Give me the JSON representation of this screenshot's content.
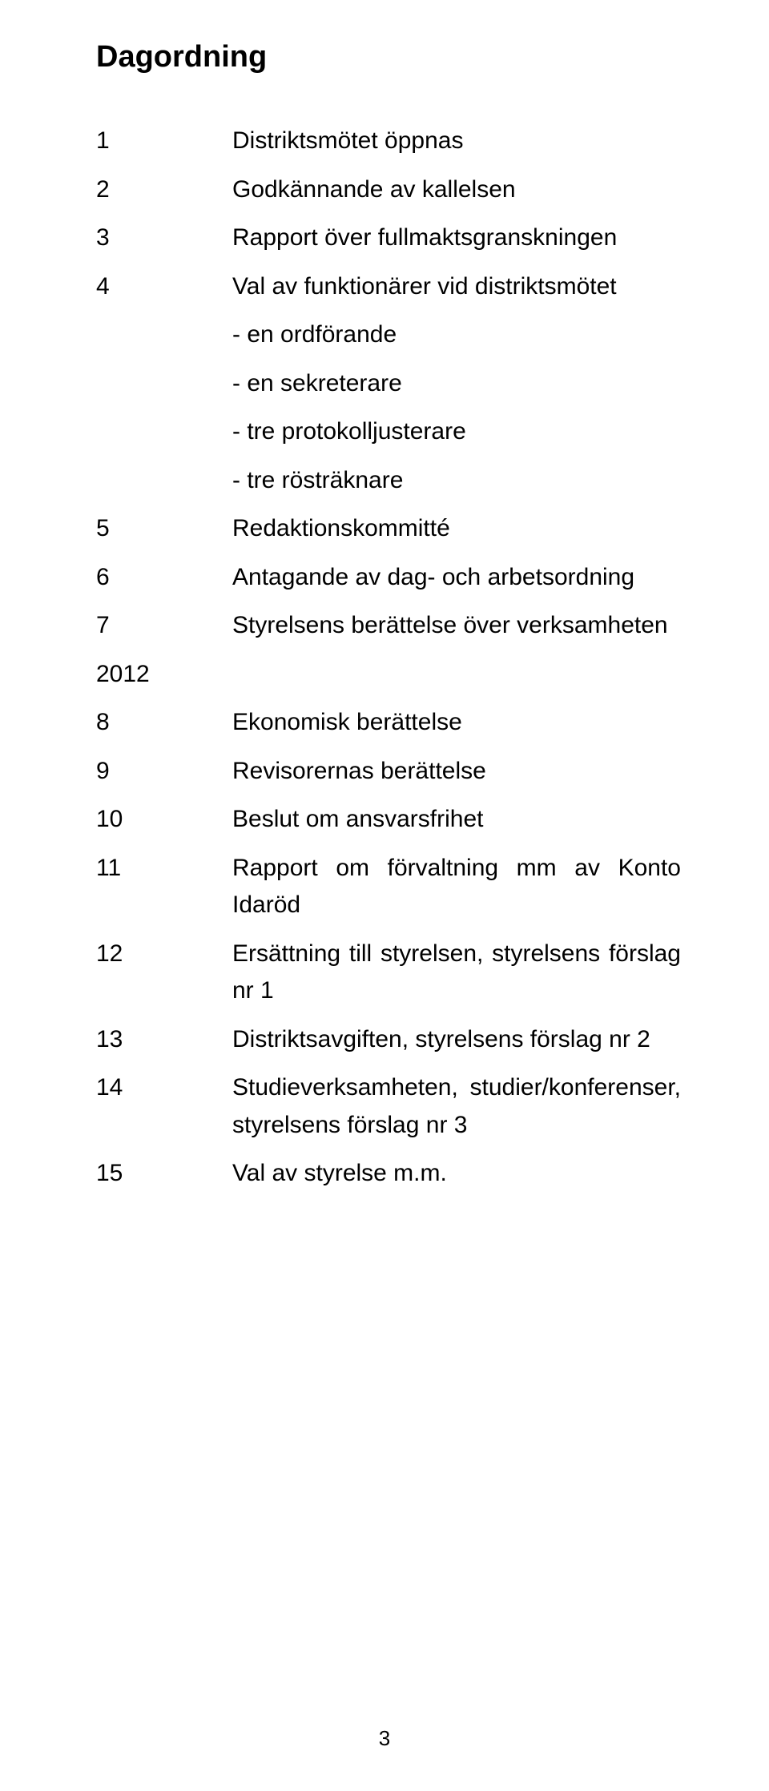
{
  "title": "Dagordning",
  "items": [
    {
      "num": "1",
      "text": "Distriktsmötet öppnas"
    },
    {
      "num": "2",
      "text": "Godkännande av kallelsen"
    },
    {
      "num": "3",
      "text": "Rapport över fullmaktsgranskningen"
    },
    {
      "num": "4",
      "text": "Val av funktionärer vid distriktsmötet"
    }
  ],
  "subs": [
    "- en ordförande",
    "- en sekreterare",
    "- tre protokolljusterare",
    "- tre rösträknare"
  ],
  "items2": [
    {
      "num": "5",
      "text": "Redaktionskommitté"
    },
    {
      "num": "6",
      "text": "Antagande av dag- och arbetsordning"
    },
    {
      "num": "7",
      "text": "Styrelsens berättelse över verksamheten"
    }
  ],
  "year": "2012",
  "items3": [
    {
      "num": "8",
      "text": "Ekonomisk berättelse"
    },
    {
      "num": "9",
      "text": "Revisorernas berättelse"
    },
    {
      "num": "10",
      "text": "Beslut om ansvarsfrihet"
    },
    {
      "num": "11",
      "text": "Rapport om förvaltning mm av Konto Idaröd",
      "justify": true
    },
    {
      "num": "12",
      "text": "Ersättning till styrelsen, styrelsens förslag nr 1",
      "justify": true
    },
    {
      "num": "13",
      "text": "Distriktsavgiften, styrelsens förslag nr 2"
    },
    {
      "num": "14",
      "text": "Studieverksamheten, studier/konferenser, styrelsens förslag nr 3"
    },
    {
      "num": "15",
      "text": "Val av styrelse m.m."
    }
  ],
  "pageNumber": "3"
}
